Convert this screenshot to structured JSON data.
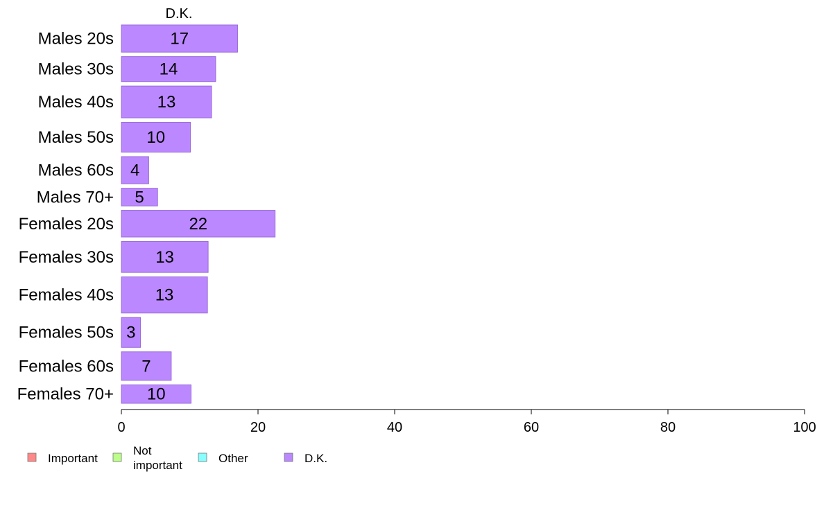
{
  "chart_data": {
    "type": "bar",
    "orientation": "horizontal",
    "series_header": "D.K.",
    "categories": [
      "Males 20s",
      "Males 30s",
      "Males 40s",
      "Males 50s",
      "Males 60s",
      "Males 70+",
      "Females 20s",
      "Females 30s",
      "Females 40s",
      "Females 50s",
      "Females 60s",
      "Females 70+"
    ],
    "series": [
      {
        "name": "D.K.",
        "values": [
          17,
          13.8,
          13.2,
          10.1,
          4,
          5.3,
          22.5,
          12.7,
          12.6,
          2.8,
          7.3,
          10.2
        ],
        "labels": [
          "17",
          "14",
          "13",
          "10",
          "4",
          "5",
          "22",
          "13",
          "13",
          "3",
          "7",
          "10"
        ],
        "color": "#bb88ff"
      }
    ],
    "group_weights": [
      1.0,
      0.92,
      1.17,
      1.1,
      1.0,
      0.65,
      0.98,
      1.14,
      1.33,
      1.1,
      1.05,
      0.68
    ],
    "xlim": [
      0,
      100
    ],
    "xticks": [
      "0",
      "20",
      "40",
      "60",
      "80",
      "100"
    ],
    "legend": {
      "placement": "bottom-left",
      "items": [
        {
          "label": [
            "Important"
          ],
          "color": "#ff8888"
        },
        {
          "label": [
            "Not",
            "important"
          ],
          "color": "#bbff88"
        },
        {
          "label": [
            "Other"
          ],
          "color": "#88ffff"
        },
        {
          "label": [
            "D.K."
          ],
          "color": "#bb88ff"
        }
      ]
    },
    "grid": false
  }
}
